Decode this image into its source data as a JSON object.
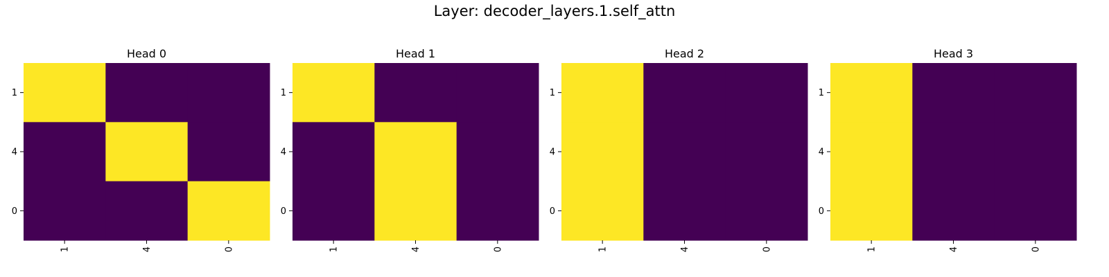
{
  "figure": {
    "title": "Layer: decoder_layers.1.self_attn"
  },
  "colors": {
    "low": "#440154",
    "high": "#fde725"
  },
  "chart_data": [
    {
      "type": "heatmap",
      "title": "Head 0",
      "x_tick_labels": [
        "1",
        "4",
        "0"
      ],
      "y_tick_labels": [
        "1",
        "4",
        "0"
      ],
      "values": [
        [
          1,
          0,
          0
        ],
        [
          0,
          1,
          0
        ],
        [
          0,
          0,
          1
        ]
      ],
      "vmin": 0,
      "vmax": 1,
      "colormap": "viridis",
      "grid": false
    },
    {
      "type": "heatmap",
      "title": "Head 1",
      "x_tick_labels": [
        "1",
        "4",
        "0"
      ],
      "y_tick_labels": [
        "1",
        "4",
        "0"
      ],
      "values": [
        [
          1,
          0,
          0
        ],
        [
          0,
          1,
          0
        ],
        [
          0,
          1,
          0
        ]
      ],
      "vmin": 0,
      "vmax": 1,
      "colormap": "viridis",
      "grid": false
    },
    {
      "type": "heatmap",
      "title": "Head 2",
      "x_tick_labels": [
        "1",
        "4",
        "0"
      ],
      "y_tick_labels": [
        "1",
        "4",
        "0"
      ],
      "values": [
        [
          1,
          0,
          0
        ],
        [
          1,
          0,
          0
        ],
        [
          1,
          0,
          0
        ]
      ],
      "vmin": 0,
      "vmax": 1,
      "colormap": "viridis",
      "grid": false
    },
    {
      "type": "heatmap",
      "title": "Head 3",
      "x_tick_labels": [
        "1",
        "4",
        "0"
      ],
      "y_tick_labels": [
        "1",
        "4",
        "0"
      ],
      "values": [
        [
          1,
          0,
          0
        ],
        [
          1,
          0,
          0
        ],
        [
          1,
          0,
          0
        ]
      ],
      "vmin": 0,
      "vmax": 1,
      "colormap": "viridis",
      "grid": false
    }
  ]
}
